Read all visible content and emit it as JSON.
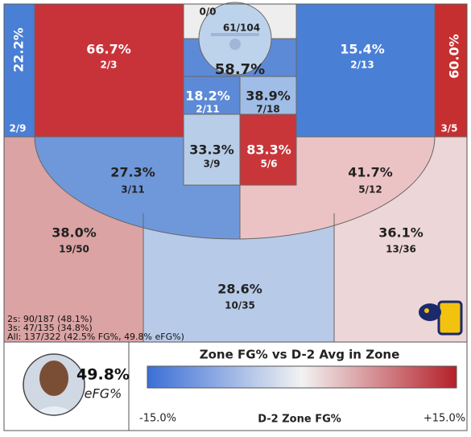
{
  "top_label": "0/0",
  "rim": {
    "shots": "61/104",
    "pct": "58.7%"
  },
  "zones": [
    {
      "pct": "22.2%",
      "shots": "2/9"
    },
    {
      "pct": "66.7%",
      "shots": "2/3"
    },
    {
      "pct": "15.4%",
      "shots": "2/13"
    },
    {
      "pct": "60.0%",
      "shots": "3/5"
    },
    {
      "pct": "18.2%",
      "shots": "2/11"
    },
    {
      "pct": "38.9%",
      "shots": "7/18"
    },
    {
      "pct": "33.3%",
      "shots": "3/9"
    },
    {
      "pct": "83.3%",
      "shots": "5/6"
    },
    {
      "pct": "27.3%",
      "shots": "3/11"
    },
    {
      "pct": "41.7%",
      "shots": "5/12"
    },
    {
      "pct": "38.0%",
      "shots": "19/50"
    },
    {
      "pct": "36.1%",
      "shots": "13/36"
    },
    {
      "pct": "28.6%",
      "shots": "10/35"
    }
  ],
  "summary": [
    "2s: 90/187 (48.1%)",
    "3s: 47/135 (34.8%)",
    "All: 137/322 (42.5% FG%, 49.8% eFG%)"
  ],
  "player": {
    "efg": "49.8%",
    "efg_label": "eFG%"
  },
  "legend": {
    "title": "Zone FG% vs D-2 Avg in Zone",
    "min": "-15.0%",
    "axis": "D-2 Zone FG%",
    "max": "+15.0%"
  }
}
